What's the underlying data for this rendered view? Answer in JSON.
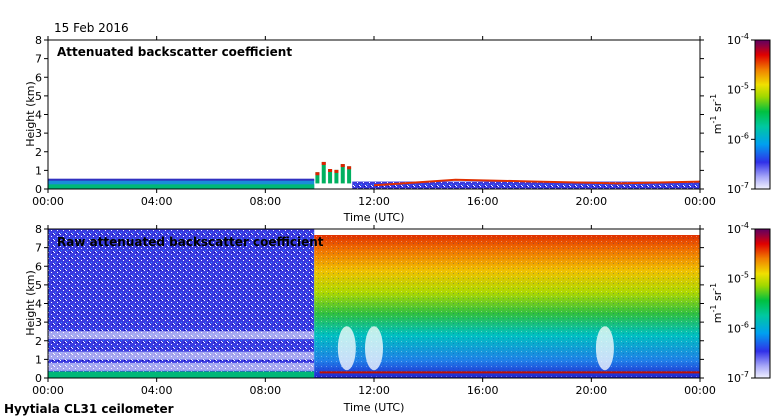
{
  "date_label": "15 Feb 2016",
  "footer": "Hyytiala CL31 ceilometer",
  "chart_data": [
    {
      "type": "heatmap",
      "title": "Attenuated backscatter coefficient",
      "xlabel": "Time (UTC)",
      "ylabel": "Height (km)",
      "x_ticks": [
        "00:00",
        "04:00",
        "08:00",
        "12:00",
        "16:00",
        "20:00",
        "00:00"
      ],
      "xlim_hours": [
        0,
        24
      ],
      "y_ticks": [
        0,
        1,
        2,
        3,
        4,
        5,
        6,
        7,
        8
      ],
      "ylim_km": [
        0,
        8
      ],
      "colorbar": {
        "scale": "log",
        "ticks": [
          "10-7",
          "10-6",
          "10-5",
          "10-4"
        ],
        "units": "m-1 sr-1",
        "range": [
          1e-07,
          0.0001
        ]
      },
      "features": [
        {
          "kind": "aerosol_layer",
          "t_start": 0.0,
          "t_end": 9.8,
          "top_km": 0.5,
          "level": "~1e-6"
        },
        {
          "kind": "cloud_patches",
          "t_start": 9.8,
          "t_end": 11.2,
          "base_km": 0.3,
          "top_km": 1.6,
          "level": "~1e-5"
        },
        {
          "kind": "surface_layer",
          "t_start": 11.2,
          "t_end": 24.0,
          "top_km": 0.4,
          "level": "~3e-7"
        },
        {
          "kind": "layer_top",
          "t_start": 12.0,
          "t_end": 24.0,
          "height_km": [
            0.2,
            0.5,
            0.4,
            0.3,
            0.4
          ],
          "level": "~2e-5"
        }
      ]
    },
    {
      "type": "heatmap",
      "title": "Raw attenuated backscatter coefficient",
      "xlabel": "Time (UTC)",
      "ylabel": "Height (km)",
      "x_ticks": [
        "00:00",
        "04:00",
        "08:00",
        "12:00",
        "16:00",
        "20:00",
        "00:00"
      ],
      "xlim_hours": [
        0,
        24
      ],
      "y_ticks": [
        0,
        1,
        2,
        3,
        4,
        5,
        6,
        7,
        8
      ],
      "ylim_km": [
        0,
        8
      ],
      "colorbar": {
        "scale": "log",
        "ticks": [
          "10-7",
          "10-6",
          "10-5",
          "10-4"
        ],
        "units": "m-1 sr-1",
        "range": [
          1e-07,
          0.0001
        ]
      },
      "features": [
        {
          "kind": "noise_field",
          "t_start": 0.0,
          "t_end": 9.8,
          "level": "~3e-7"
        },
        {
          "kind": "noise_field_gradient",
          "t_start": 9.8,
          "t_end": 24.0,
          "bottom_level": "~1e-6",
          "top_level": "~3e-5"
        },
        {
          "kind": "white_gaps",
          "times": [
            11.0,
            12.0,
            20.5
          ]
        },
        {
          "kind": "layer_top",
          "t_start": 10.0,
          "t_end": 24.0,
          "height_km": 0.3,
          "level": "~2e-5"
        }
      ]
    }
  ]
}
